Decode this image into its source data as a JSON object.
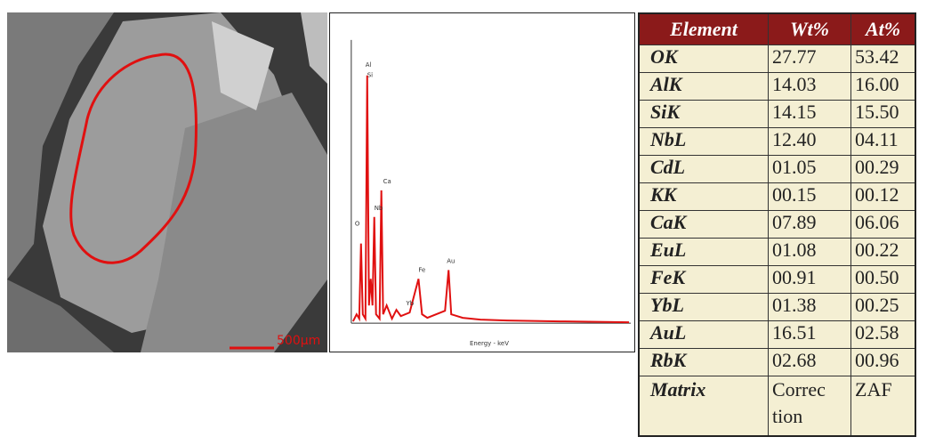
{
  "sem_image": {
    "scale_bar": "500µm"
  },
  "spectrum": {
    "x_axis_label": "Energy - keV",
    "peaks": [
      "O",
      "Al",
      "Si",
      "Nb",
      "Ca",
      "Fe",
      "Au",
      "Yb"
    ]
  },
  "table": {
    "header": [
      "Element",
      "Wt%",
      "At%"
    ],
    "rows": [
      [
        "OK",
        "27.77",
        "53.42"
      ],
      [
        "AlK",
        "14.03",
        "16.00"
      ],
      [
        "SiK",
        "14.15",
        "15.50"
      ],
      [
        "NbL",
        "12.40",
        "04.11"
      ],
      [
        "CdL",
        "01.05",
        "00.29"
      ],
      [
        "KK",
        "00.15",
        "00.12"
      ],
      [
        "CaK",
        "07.89",
        "06.06"
      ],
      [
        "EuL",
        "01.08",
        "00.22"
      ],
      [
        "FeK",
        "00.91",
        "00.50"
      ],
      [
        "YbL",
        "01.38",
        "00.25"
      ],
      [
        "AuL",
        "16.51",
        "02.58"
      ],
      [
        "RbK",
        "02.68",
        "00.96"
      ],
      [
        "Matrix",
        "Correc tion",
        "ZAF"
      ]
    ]
  }
}
